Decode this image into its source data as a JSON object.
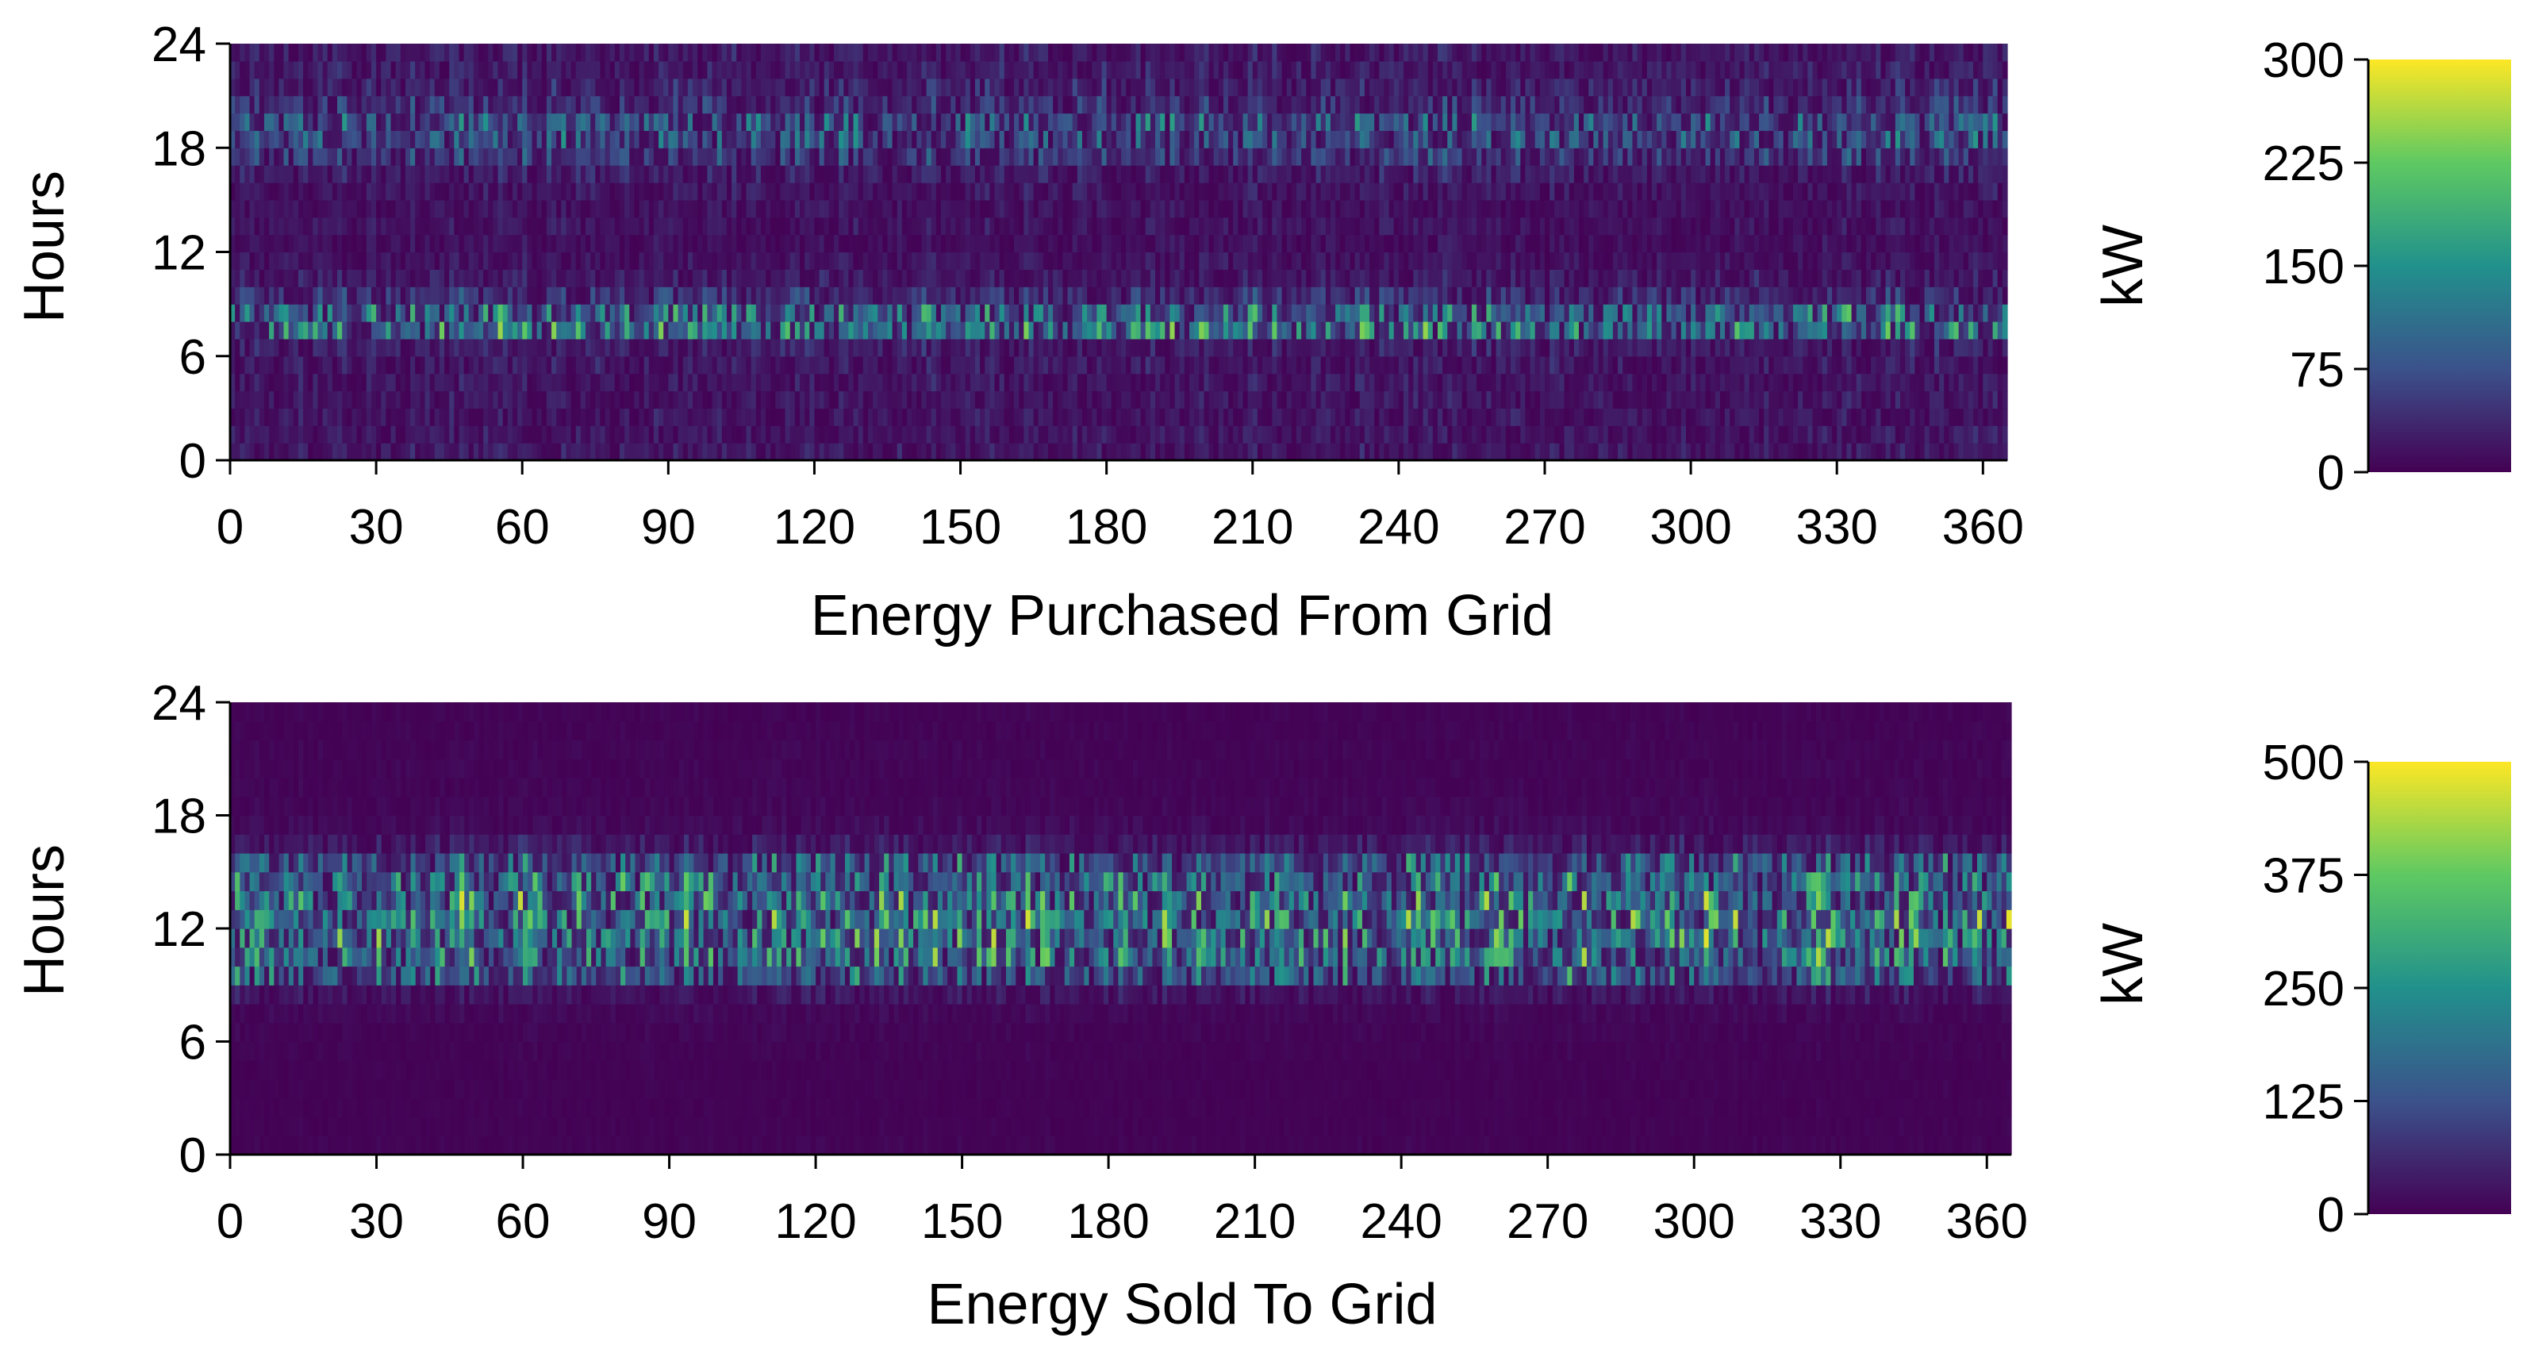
{
  "chart_data": [
    {
      "type": "heatmap",
      "name": "purchased",
      "xlabel": "Energy Purchased From Grid",
      "ylabel": "Hours",
      "colorbar_label": "kW",
      "xlim": [
        0,
        365
      ],
      "ylim": [
        0,
        24
      ],
      "x_ticks": [
        0,
        30,
        60,
        90,
        120,
        150,
        180,
        210,
        240,
        270,
        300,
        330,
        360
      ],
      "y_ticks": [
        0,
        6,
        12,
        18,
        24
      ],
      "color_range": [
        0,
        300
      ],
      "colorbar_ticks": [
        0,
        75,
        150,
        225,
        300
      ],
      "colormap": [
        "#440154",
        "#3b528b",
        "#21918c",
        "#5ec962",
        "#fde725"
      ],
      "days": 365,
      "hours": 24,
      "profile_kW_by_hour": [
        28,
        26,
        25,
        25,
        26,
        28,
        35,
        140,
        120,
        55,
        30,
        22,
        18,
        22,
        20,
        25,
        35,
        60,
        85,
        95,
        55,
        40,
        32,
        30
      ]
    },
    {
      "type": "heatmap",
      "name": "sold",
      "xlabel": "Energy Sold To Grid",
      "ylabel": "Hours",
      "colorbar_label": "kW",
      "xlim": [
        0,
        365
      ],
      "ylim": [
        0,
        24
      ],
      "x_ticks": [
        0,
        30,
        60,
        90,
        120,
        150,
        180,
        210,
        240,
        270,
        300,
        330,
        360
      ],
      "y_ticks": [
        0,
        6,
        12,
        18,
        24
      ],
      "color_range": [
        0,
        500
      ],
      "colorbar_ticks": [
        0,
        125,
        250,
        375,
        500
      ],
      "colormap": [
        "#440154",
        "#3b528b",
        "#21918c",
        "#5ec962",
        "#fde725"
      ],
      "days": 365,
      "hours": 24,
      "profile_kW_by_hour": [
        8,
        6,
        6,
        6,
        6,
        8,
        10,
        15,
        40,
        180,
        240,
        250,
        260,
        245,
        220,
        170,
        50,
        20,
        12,
        10,
        10,
        10,
        8,
        8
      ]
    }
  ]
}
